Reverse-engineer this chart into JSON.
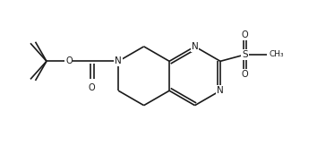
{
  "background": "#ffffff",
  "line_color": "#1a1a1a",
  "line_width": 1.2,
  "figsize": [
    3.54,
    1.73
  ],
  "dpi": 100,
  "xlim": [
    0,
    10
  ],
  "ylim": [
    0,
    5
  ]
}
